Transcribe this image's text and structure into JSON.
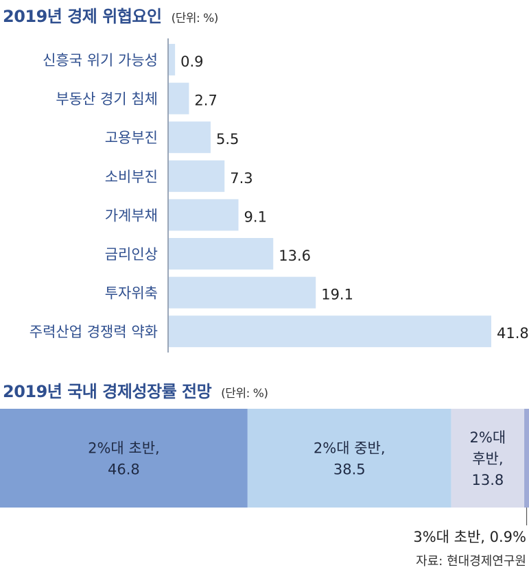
{
  "chart_data": [
    {
      "type": "bar",
      "orientation": "horizontal",
      "title": "2019년 경제 위협요인",
      "unit_label": "(단위: %)",
      "categories": [
        "신흥국 위기 가능성",
        "부동산 경기 침체",
        "고용부진",
        "소비부진",
        "가계부채",
        "금리인상",
        "투자위축",
        "주력산업 경쟁력 약화"
      ],
      "values": [
        0.9,
        2.7,
        5.5,
        7.3,
        9.1,
        13.6,
        19.1,
        41.8
      ],
      "value_labels": [
        "0.9",
        "2.7",
        "5.5",
        "7.3",
        "9.1",
        "13.6",
        "19.1",
        "41.8"
      ],
      "xlim": [
        0,
        41.8
      ],
      "grid": false,
      "bar_color": "#cfe1f4",
      "axis_color": "#9aa6b8"
    },
    {
      "type": "bar",
      "orientation": "stacked-horizontal",
      "title": "2019년 국내 경제성장률 전망",
      "unit_label": "(단위: %)",
      "segments": [
        {
          "name": "2%대 초반",
          "value": 46.8,
          "label_lines": [
            "2%대 초반,",
            "46.8"
          ],
          "color": "#7f9fd4"
        },
        {
          "name": "2%대 중반",
          "value": 38.5,
          "label_lines": [
            "2%대 중반,",
            "38.5"
          ],
          "color": "#b9d5ef"
        },
        {
          "name": "2%대 후반",
          "value": 13.8,
          "label_lines": [
            "2%대",
            "후반,",
            "13.8"
          ],
          "color": "#d9dcec"
        },
        {
          "name": "3%대 초반",
          "value": 0.9,
          "label_lines": [
            "3%대 초반, 0.9%"
          ],
          "color": "#9faad6"
        }
      ],
      "total": 100
    }
  ],
  "source": "자료: 현대경제연구원"
}
